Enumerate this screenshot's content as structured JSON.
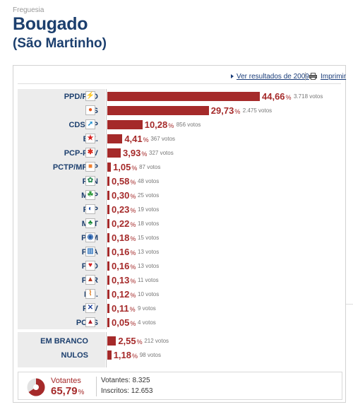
{
  "header": {
    "label": "Freguesia",
    "title": "Bougado",
    "subtitle": "(São Martinho)"
  },
  "toolbar": {
    "previous_results_link": "Ver resultados de 2009",
    "print_link": "Imprimir"
  },
  "vote_unit": "votos",
  "percent_symbol": "%",
  "max_percent": 44.66,
  "results": [
    {
      "party": "PPD/PSD",
      "percent": "44,66",
      "percent_value": 44.66,
      "votes": "3.718 votos",
      "logo": "ppd-psd-arrow-icon",
      "logo_glyph": "⚡",
      "logo_color": "#e56b0c"
    },
    {
      "party": "PS",
      "percent": "29,73",
      "percent_value": 29.73,
      "votes": "2.475 votos",
      "logo": "ps-fist-rose-icon",
      "logo_glyph": "●",
      "logo_color": "#e8561a"
    },
    {
      "party": "CDS-PP",
      "percent": "10,28",
      "percent_value": 10.28,
      "votes": "856 votos",
      "logo": "cds-pp-arrow-icon",
      "logo_glyph": "➚",
      "logo_color": "#1d8fd1"
    },
    {
      "party": "B.E.",
      "percent": "4,41",
      "percent_value": 4.41,
      "votes": "367 votos",
      "logo": "be-star-icon",
      "logo_glyph": "★",
      "logo_color": "#d81e1e"
    },
    {
      "party": "PCP-PEV",
      "percent": "3,93",
      "percent_value": 3.93,
      "votes": "327 votos",
      "logo": "pcp-pev-hammer-sickle-icon",
      "logo_glyph": "✱",
      "logo_color": "#d82b1e"
    },
    {
      "party": "PCTP/MRPP",
      "percent": "1,05",
      "percent_value": 1.05,
      "votes": "87 votos",
      "logo": "pctp-mrpp-icon",
      "logo_glyph": "■",
      "logo_color": "#f08030"
    },
    {
      "party": "PAN",
      "percent": "0,58",
      "percent_value": 0.58,
      "votes": "48 votos",
      "logo": "pan-icon",
      "logo_glyph": "✿",
      "logo_color": "#2e8b57"
    },
    {
      "party": "MEP",
      "percent": "0,30",
      "percent_value": 0.3,
      "votes": "25 votos",
      "logo": "mep-leaf-icon",
      "logo_glyph": "☘",
      "logo_color": "#2f9a3a"
    },
    {
      "party": "PTP",
      "percent": "0,23",
      "percent_value": 0.23,
      "votes": "19 votos",
      "logo": "ptp-swirl-icon",
      "logo_glyph": "◐",
      "logo_color": "#2452a8"
    },
    {
      "party": "MPT",
      "percent": "0,22",
      "percent_value": 0.22,
      "votes": "18 votos",
      "logo": "mpt-clover-icon",
      "logo_glyph": "♣",
      "logo_color": "#1b8a3b"
    },
    {
      "party": "PPM",
      "percent": "0,18",
      "percent_value": 0.18,
      "votes": "15 votos",
      "logo": "ppm-crown-icon",
      "logo_glyph": "◉",
      "logo_color": "#1f5aa8"
    },
    {
      "party": "PDA",
      "percent": "0,16",
      "percent_value": 0.16,
      "votes": "13 votos",
      "logo": "pda-icon",
      "logo_glyph": "▥",
      "logo_color": "#3a7bbf"
    },
    {
      "party": "PND",
      "percent": "0,16",
      "percent_value": 0.16,
      "votes": "13 votos",
      "logo": "pnd-heart-icon",
      "logo_glyph": "♥",
      "logo_color": "#d62020"
    },
    {
      "party": "PNR",
      "percent": "0,13",
      "percent_value": 0.13,
      "votes": "11 votos",
      "logo": "pnr-flame-icon",
      "logo_glyph": "▲",
      "logo_color": "#b8361f"
    },
    {
      "party": "P.H.",
      "percent": "0,12",
      "percent_value": 0.12,
      "votes": "10 votos",
      "logo": "ph-icon",
      "logo_glyph": "⌇",
      "logo_color": "#e07b1a"
    },
    {
      "party": "PPV",
      "percent": "0,11",
      "percent_value": 0.11,
      "votes": "9 votos",
      "logo": "ppv-cross-icon",
      "logo_glyph": "✕",
      "logo_color": "#1d3f9a"
    },
    {
      "party": "POUS",
      "percent": "0,05",
      "percent_value": 0.05,
      "votes": "4 votos",
      "logo": "pous-icon",
      "logo_glyph": "▲",
      "logo_color": "#b01e2a"
    }
  ],
  "other_results": [
    {
      "party": "EM BRANCO",
      "percent": "2,55",
      "percent_value": 2.55,
      "votes": "212 votos"
    },
    {
      "party": "NULOS",
      "percent": "1,18",
      "percent_value": 1.18,
      "votes": "98 votos"
    }
  ],
  "turnout": {
    "label": "Votantes",
    "percent": "65,79",
    "percent_value": 65.79,
    "voters_line": "Votantes: 8.325",
    "registered_line": "Inscritos: 12.653",
    "pie_color": "#a52a2a",
    "pie_rest_color": "#e2e2e2"
  },
  "colors": {
    "bar": "#a52a2a",
    "title": "#1c3f6e"
  }
}
